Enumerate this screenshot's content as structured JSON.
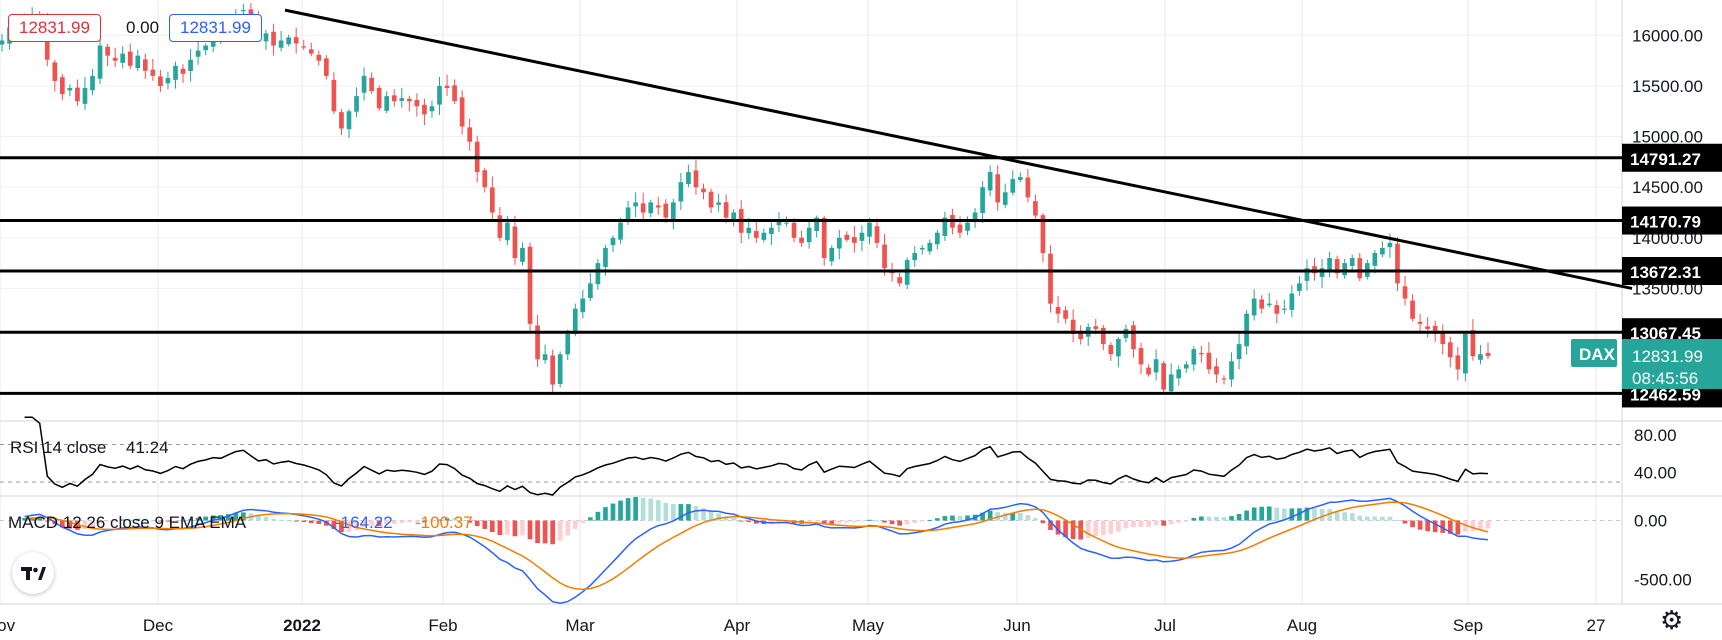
{
  "header": {
    "price_badge_red": "12831.99",
    "change_value": "0.00",
    "price_badge_blue": "12831.99"
  },
  "symbol": {
    "label": "DAX",
    "price": "12831.99",
    "countdown": "08:45:56",
    "color": "#26a69a"
  },
  "colors": {
    "up": "#26a69a",
    "down": "#ef5350",
    "up_hist": "#b2dfdb",
    "down_hist": "#ffcdd2",
    "macd_line": "#2962ff",
    "signal_line": "#f57c00",
    "rsi_line": "#000000"
  },
  "icons": {
    "logo": "tradingview-logo-icon",
    "settings": "gear-icon"
  },
  "chart_data": {
    "type": "candlestick",
    "price_axis": {
      "ticks": [
        "16000.00",
        "15500.00",
        "15000.00",
        "14500.00",
        "14000.00",
        "13500.00"
      ],
      "ylim": [
        12200,
        16350
      ]
    },
    "x_labels": [
      "Nov",
      "Dec",
      "2022",
      "Feb",
      "Mar",
      "Apr",
      "May",
      "Jun",
      "Jul",
      "Aug",
      "Sep",
      "27"
    ],
    "horizontal_levels": [
      {
        "value": 14791.27,
        "label": "14791.27"
      },
      {
        "value": 14170.79,
        "label": "14170.79"
      },
      {
        "value": 13672.31,
        "label": "13672.31"
      },
      {
        "value": 13067.45,
        "label": "13067.45"
      },
      {
        "value": 12462.59,
        "label": "12462.59"
      }
    ],
    "trendline": {
      "start": {
        "date": "2022-01-04",
        "value": 16250
      },
      "end": {
        "date": "2022-09-20",
        "value": 13500
      }
    },
    "closes": [
      15950,
      16080,
      16120,
      16160,
      16200,
      16180,
      15760,
      15550,
      15420,
      15480,
      15350,
      15480,
      15600,
      15900,
      15800,
      15750,
      15820,
      15700,
      15800,
      15650,
      15600,
      15500,
      15580,
      15700,
      15620,
      15760,
      15850,
      15900,
      15980,
      15960,
      16080,
      16200,
      16250,
      16120,
      15980,
      16020,
      15900,
      15950,
      15980,
      15920,
      15880,
      15820,
      15750,
      15600,
      15250,
      15080,
      15250,
      15400,
      15600,
      15450,
      15280,
      15400,
      15350,
      15380,
      15350,
      15300,
      15220,
      15300,
      15500,
      15480,
      15350,
      15100,
      14950,
      14650,
      14500,
      14250,
      14000,
      14150,
      13800,
      13900,
      13150,
      12800,
      12850,
      12550,
      12850,
      13050,
      13300,
      13400,
      13550,
      13750,
      13900,
      14000,
      14150,
      14300,
      14350,
      14250,
      14350,
      14300,
      14200,
      14350,
      14550,
      14650,
      14500,
      14450,
      14300,
      14350,
      14200,
      14250,
      14050,
      14100,
      14000,
      14050,
      14100,
      14180,
      14150,
      14000,
      13950,
      14100,
      14200,
      13800,
      13900,
      14000,
      13980,
      13950,
      14050,
      14150,
      13950,
      13700,
      13650,
      13550,
      13780,
      13850,
      13900,
      13950,
      14050,
      14200,
      14100,
      14050,
      14150,
      14250,
      14500,
      14650,
      14350,
      14450,
      14580,
      14600,
      14400,
      14220,
      13850,
      13350,
      13250,
      13200,
      13050,
      13000,
      13120,
      13100,
      12950,
      12850,
      13000,
      13100,
      12900,
      12750,
      12650,
      12800,
      12500,
      12650,
      12700,
      12750,
      12900,
      12850,
      12700,
      12650,
      12600,
      12780,
      12950,
      13250,
      13400,
      13300,
      13350,
      13250,
      13300,
      13450,
      13550,
      13700,
      13650,
      13700,
      13800,
      13650,
      13750,
      13800,
      13600,
      13750,
      13850,
      13900,
      13950,
      13550,
      13400,
      13200,
      13150,
      13100,
      13050,
      12950,
      12820,
      12700,
      13050,
      12830,
      12850,
      12831.99
    ],
    "rsi": {
      "label": "RSI 14 close",
      "value": "41.24",
      "ticks": [
        "80.00",
        "40.00"
      ],
      "levels": [
        70,
        30
      ]
    },
    "macd": {
      "label": "MACD 12 26 close 9 EMA EMA",
      "macd_value": "-164.22",
      "signal_value": "-100.37",
      "ticks": [
        "0.00",
        "-500.00"
      ]
    }
  }
}
